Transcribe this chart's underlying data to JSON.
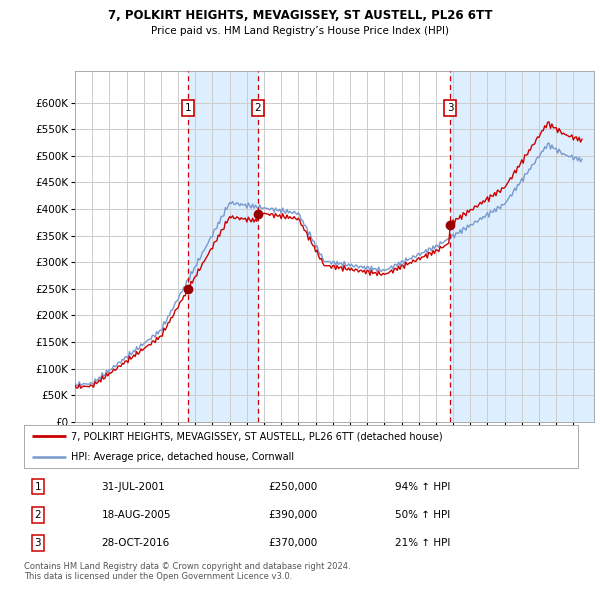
{
  "title": "7, POLKIRT HEIGHTS, MEVAGISSEY, ST AUSTELL, PL26 6TT",
  "subtitle": "Price paid vs. HM Land Registry’s House Price Index (HPI)",
  "ylim": [
    0,
    660000
  ],
  "yticks": [
    0,
    50000,
    100000,
    150000,
    200000,
    250000,
    300000,
    350000,
    400000,
    450000,
    500000,
    550000,
    600000
  ],
  "xlim_start": 1995.0,
  "xlim_end": 2025.2,
  "background_color": "#ffffff",
  "grid_color": "#cccccc",
  "sale_events": [
    {
      "x": 2001.575,
      "price": 250000,
      "label": "1"
    },
    {
      "x": 2005.633,
      "price": 390000,
      "label": "2"
    },
    {
      "x": 2016.831,
      "price": 370000,
      "label": "3"
    }
  ],
  "table_entries": [
    {
      "num": "1",
      "date": "31-JUL-2001",
      "price": "£250,000",
      "info": "94% ↑ HPI"
    },
    {
      "num": "2",
      "date": "18-AUG-2005",
      "price": "£390,000",
      "info": "50% ↑ HPI"
    },
    {
      "num": "3",
      "date": "28-OCT-2016",
      "price": "£370,000",
      "info": "21% ↑ HPI"
    }
  ],
  "legend_entries": [
    "7, POLKIRT HEIGHTS, MEVAGISSEY, ST AUSTELL, PL26 6TT (detached house)",
    "HPI: Average price, detached house, Cornwall"
  ],
  "footer": "Contains HM Land Registry data © Crown copyright and database right 2024.\nThis data is licensed under the Open Government Licence v3.0.",
  "property_line_color": "#cc0000",
  "hpi_line_color": "#7799cc",
  "vline_color": "#cc0000",
  "shade_color": "#ddeeff",
  "dot_color": "#990000"
}
